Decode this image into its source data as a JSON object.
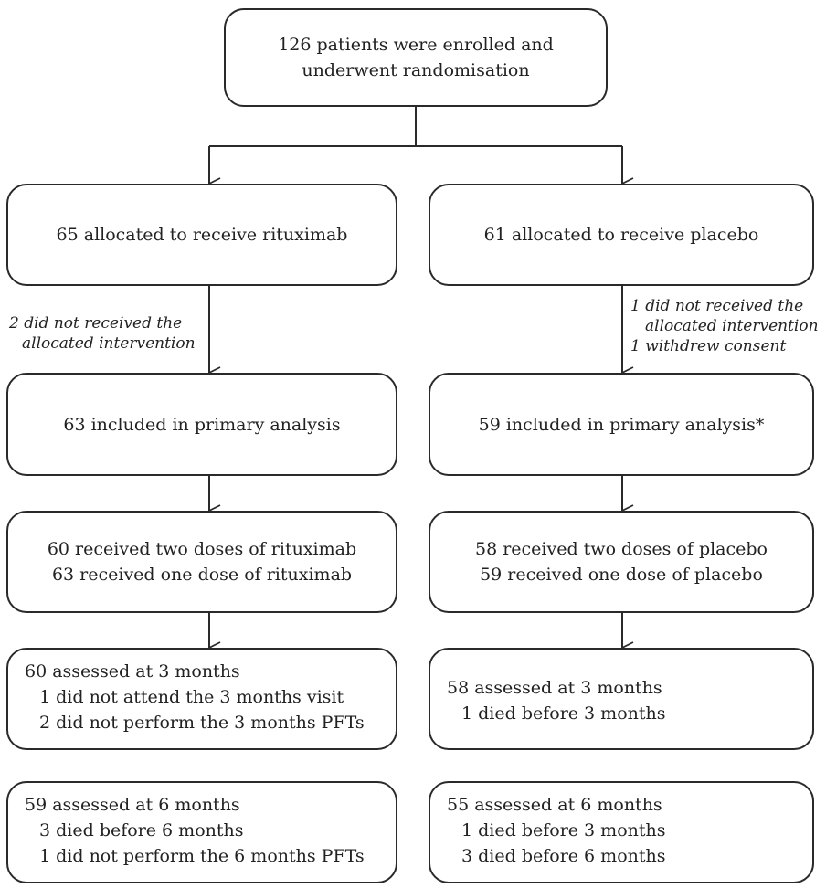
{
  "top": {
    "lines": [
      "126 patients were enrolled and",
      "underwent randomisation"
    ]
  },
  "left": {
    "alloc": "65 allocated to receive rituximab",
    "exclusion_note": [
      "2 did not received the",
      "allocated intervention"
    ],
    "primary": "63 included in primary analysis",
    "doses": [
      "60 received two doses of rituximab",
      "63 received one dose of rituximab"
    ],
    "m3": {
      "head": "60 assessed at 3 months",
      "items": [
        "1 did not attend the 3 months visit",
        "2 did not perform the 3 months PFTs"
      ]
    },
    "m6": {
      "head": "59 assessed at 6 months",
      "items": [
        "3 died before 6 months",
        "1 did not perform the 6 months PFTs"
      ]
    }
  },
  "right": {
    "alloc": "61 allocated to receive placebo",
    "exclusion_note": [
      "1 did not received the",
      "allocated intervention",
      "1 withdrew consent"
    ],
    "primary": "59 included in primary analysis*",
    "doses": [
      "58 received two doses of placebo",
      "59 received one dose of placebo"
    ],
    "m3": {
      "head": "58 assessed at 3 months",
      "items": [
        "1 died before 3 months"
      ]
    },
    "m6": {
      "head": "55 assessed at 6 months",
      "items": [
        "1 died before 3 months",
        "3 died before 6 months"
      ]
    }
  }
}
